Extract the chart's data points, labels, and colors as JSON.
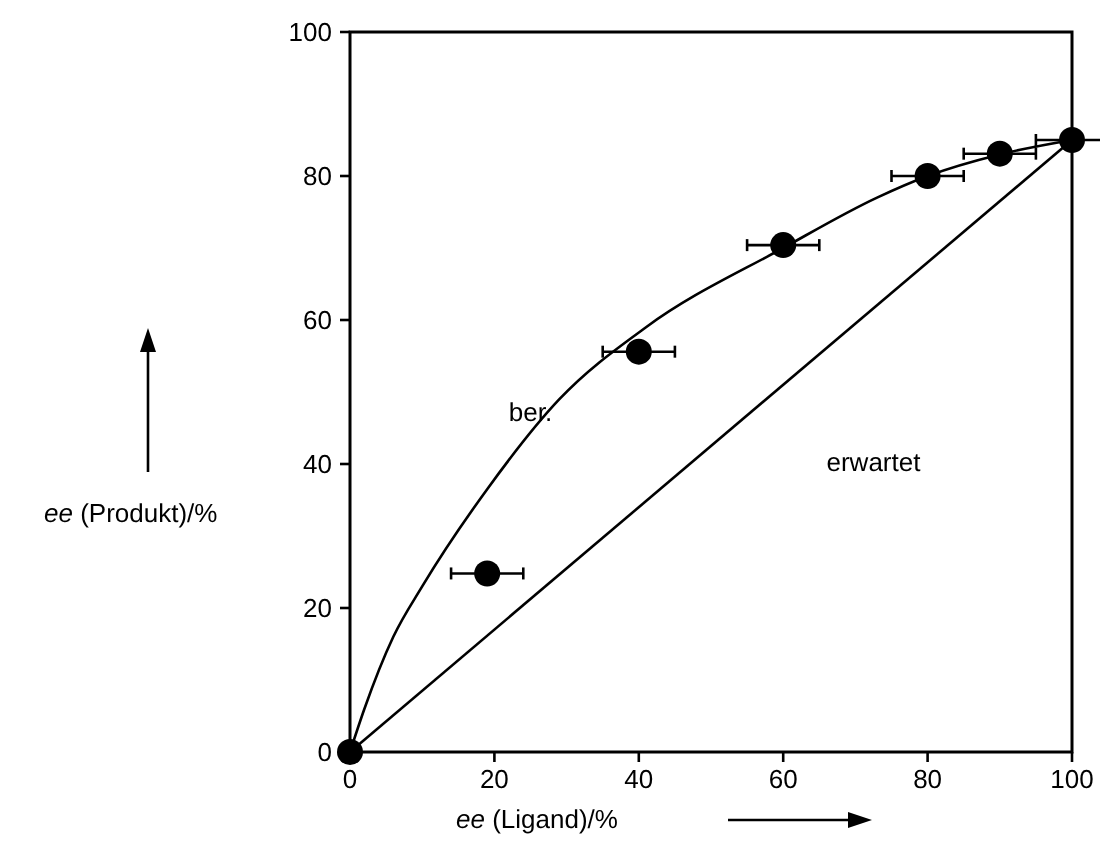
{
  "chart_data": {
    "type": "scatter",
    "xlabel": "ee (Ligand)/%",
    "ylabel": "ee (Produkt)/%",
    "xlim": [
      0,
      100
    ],
    "ylim": [
      0,
      100
    ],
    "xticks": [
      0,
      20,
      40,
      60,
      80,
      100
    ],
    "yticks": [
      0,
      20,
      40,
      60,
      80,
      100
    ],
    "grid": false,
    "series": [
      {
        "type": "line",
        "name": "ber.",
        "color": "#000000",
        "marker": "none",
        "x": [
          0,
          2,
          6,
          10,
          19,
          29,
          41,
          60,
          73,
          80,
          90,
          100
        ],
        "values": [
          0,
          6,
          16,
          23,
          36.5,
          49,
          59,
          70,
          77,
          80,
          83,
          85
        ]
      },
      {
        "type": "line",
        "name": "erwartet",
        "color": "#000000",
        "marker": "none",
        "x": [
          0,
          100
        ],
        "values": [
          0,
          85
        ]
      },
      {
        "color": "#000000",
        "marker": "circle",
        "x": [
          0,
          19,
          40,
          60,
          80,
          90,
          100
        ],
        "values": [
          0,
          24.8,
          55.6,
          70.4,
          80,
          83.1,
          85
        ],
        "xerrors": [
          null,
          5,
          5,
          5,
          5,
          5,
          5
        ]
      }
    ]
  }
}
